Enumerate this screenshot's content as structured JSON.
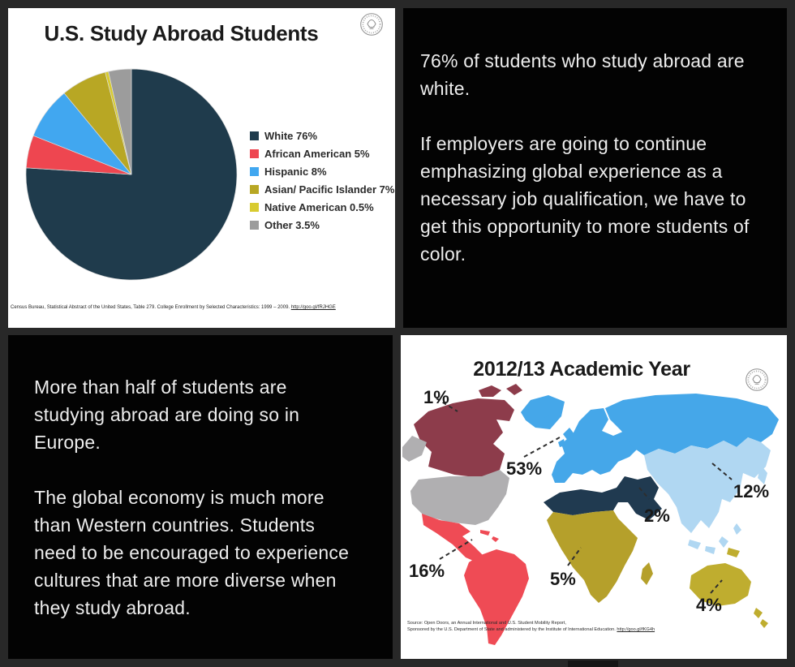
{
  "frame": {
    "background": "#282828",
    "panel_dark": "#030303",
    "panel_light": "#ffffff"
  },
  "pie_panel": {
    "title": "U.S. Study Abroad Students",
    "seal_icon": "us-department-of-state-seal",
    "citation_text": "Census Bureau, Statistical Abstract  of the United States, Table 279. College Enrollment by Selected Characteristics: 1999 – 2009. ",
    "citation_link": "http://goo.gl/fRJHGE"
  },
  "quote_top": {
    "p1": "76% of students who study abroad are white.",
    "p2": "If employers are going to continue emphasizing global experience as a necessary job qualification, we have to get this opportunity to more students of color."
  },
  "quote_bottom": {
    "p1": "More than half of students are studying abroad are doing so in Europe.",
    "p2": "The global economy is much more than Western countries. Students need to be encouraged to experience cultures that are more diverse when they study abroad."
  },
  "map_panel": {
    "title": "2012/13 Academic Year",
    "seal_icon": "us-department-of-state-seal",
    "source_line1": "Source: Open Doors, an Annual International and U.S. Student Mobility Report,",
    "source_line2": "Sponsored by the U.S. Department of State and administered by the Institute of International Education. ",
    "source_link": "http://goo.gl/fKG4h"
  },
  "chart_data": [
    {
      "type": "pie",
      "title": "U.S. Study Abroad Students",
      "labels": [
        "White 76%",
        "African American 5%",
        "Hispanic 8%",
        "Asian/ Pacific Islander 7%",
        "Native American 0.5%",
        "Other 3.5%"
      ],
      "values": [
        76,
        5,
        8,
        7,
        0.5,
        3.5
      ],
      "colors": [
        "#1f3b4c",
        "#ee4650",
        "#41a7f0",
        "#b8a724",
        "#d8cb30",
        "#9c9c9c"
      ],
      "legend_position": "right",
      "start_angle": "top, clockwise"
    },
    {
      "type": "map",
      "title": "2012/13 Academic Year",
      "regions": [
        {
          "name": "North America (Canada)",
          "value": "1%",
          "color": "#8d3c4b"
        },
        {
          "name": "Europe",
          "value": "53%",
          "color": "#45a7e9"
        },
        {
          "name": "Asia",
          "value": "12%",
          "color": "#b0d7f2"
        },
        {
          "name": "Middle East & North Africa",
          "value": "2%",
          "color": "#203a50"
        },
        {
          "name": "Sub-Saharan Africa",
          "value": "5%",
          "color": "#b5a02b"
        },
        {
          "name": "Latin America",
          "value": "16%",
          "color": "#ef4b55"
        },
        {
          "name": "Oceania",
          "value": "4%",
          "color": "#bfad2f"
        },
        {
          "name": "United States",
          "value": null,
          "color": "#b0afb1"
        }
      ]
    }
  ]
}
